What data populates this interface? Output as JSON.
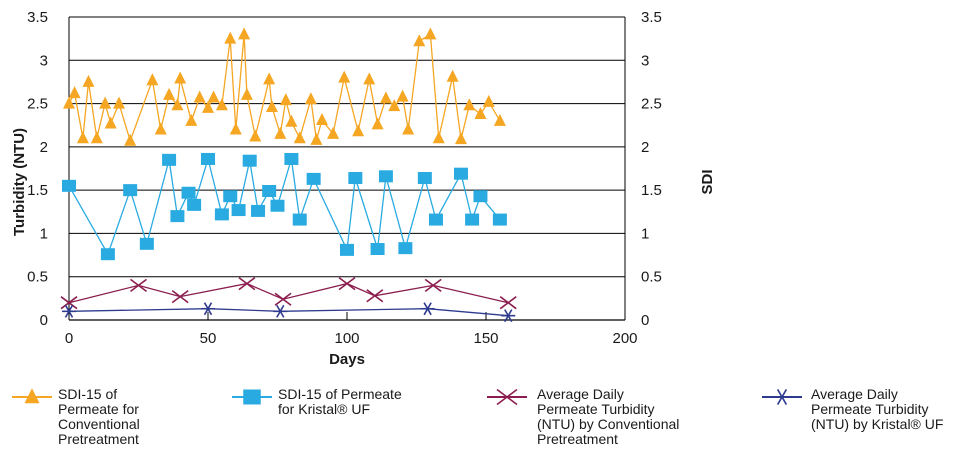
{
  "chart_data": {
    "type": "line",
    "ylabel": "Turbidity (NTU)",
    "y2label": "SDI",
    "xlabel": "Days",
    "xlim": [
      0,
      200
    ],
    "ylim": [
      0,
      3.5
    ],
    "y2lim": [
      0,
      3.5
    ],
    "x_ticks": [
      "0",
      "50",
      "100",
      "150",
      "200"
    ],
    "y_ticks": [
      "0",
      "0.5",
      "1",
      "1.5",
      "2",
      "2.5",
      "3",
      "3.5"
    ],
    "y2_ticks": [
      "0",
      "0.5",
      "1",
      "1.5",
      "2",
      "2.5",
      "3",
      "3.5"
    ],
    "grid": "horizontal",
    "legend_position": "bottom",
    "series": [
      {
        "name": "SDI-15 of Permeate for Conventional Pretreatment",
        "legend_lines": [
          "SDI-15 of",
          "Permeate for",
          "Conventional",
          "Pretreatment"
        ],
        "color": "#f5a623",
        "marker": "triangle",
        "x": [
          0,
          2,
          5,
          7,
          10,
          13,
          15,
          18,
          22,
          30,
          33,
          36,
          39,
          40,
          44,
          47,
          50,
          52,
          55,
          58,
          60,
          63,
          64,
          67,
          72,
          73,
          76,
          78,
          80,
          83,
          87,
          89,
          91,
          95,
          99,
          104,
          108,
          111,
          114,
          117,
          120,
          122,
          126,
          130,
          133,
          138,
          141,
          144,
          148,
          151,
          155
        ],
        "y": [
          2.5,
          2.62,
          2.1,
          2.75,
          2.1,
          2.5,
          2.27,
          2.5,
          2.07,
          2.77,
          2.2,
          2.6,
          2.48,
          2.79,
          2.3,
          2.57,
          2.45,
          2.57,
          2.48,
          3.25,
          2.2,
          3.3,
          2.6,
          2.12,
          2.78,
          2.46,
          2.15,
          2.54,
          2.29,
          2.1,
          2.55,
          2.08,
          2.31,
          2.15,
          2.8,
          2.18,
          2.78,
          2.26,
          2.56,
          2.47,
          2.58,
          2.2,
          3.22,
          3.3,
          2.1,
          2.81,
          2.09,
          2.48,
          2.38,
          2.52,
          2.3
        ]
      },
      {
        "name": "SDI-15 of Permeate for Kristal® UF",
        "legend_lines": [
          "SDI-15 of Permeate",
          "for Kristal® UF"
        ],
        "color": "#29abe2",
        "marker": "square",
        "x": [
          0,
          14,
          22,
          28,
          36,
          39,
          43,
          45,
          50,
          55,
          58,
          61,
          65,
          68,
          72,
          75,
          80,
          83,
          88,
          100,
          103,
          111,
          114,
          121,
          128,
          132,
          141,
          145,
          148,
          155
        ],
        "y": [
          1.55,
          0.76,
          1.5,
          0.88,
          1.85,
          1.2,
          1.47,
          1.33,
          1.86,
          1.22,
          1.43,
          1.27,
          1.84,
          1.26,
          1.49,
          1.32,
          1.86,
          1.16,
          1.63,
          0.81,
          1.64,
          0.82,
          1.66,
          0.83,
          1.64,
          1.16,
          1.69,
          1.16,
          1.43,
          1.16
        ]
      },
      {
        "name": "Average Daily Permeate Turbidity (NTU) by Conventional Pretreatment",
        "legend_lines": [
          "Average Daily",
          "Permeate Turbidity",
          "(NTU) by Conventional",
          "Pretreatment"
        ],
        "color": "#8b1e4e",
        "marker": "x",
        "x": [
          0,
          25,
          40,
          64,
          77,
          100,
          110,
          131,
          158
        ],
        "y": [
          0.2,
          0.4,
          0.27,
          0.42,
          0.24,
          0.42,
          0.28,
          0.4,
          0.2
        ]
      },
      {
        "name": "Average Daily Permeate Turbidity (NTU) by Kristal® UF",
        "legend_lines": [
          "Average Daily",
          "Permeate Turbidity",
          "(NTU) by Kristal® UF"
        ],
        "color": "#2e3b8f",
        "marker": "asterisk",
        "x": [
          0,
          50,
          76,
          129,
          158
        ],
        "y": [
          0.1,
          0.13,
          0.1,
          0.13,
          0.05
        ]
      }
    ]
  }
}
